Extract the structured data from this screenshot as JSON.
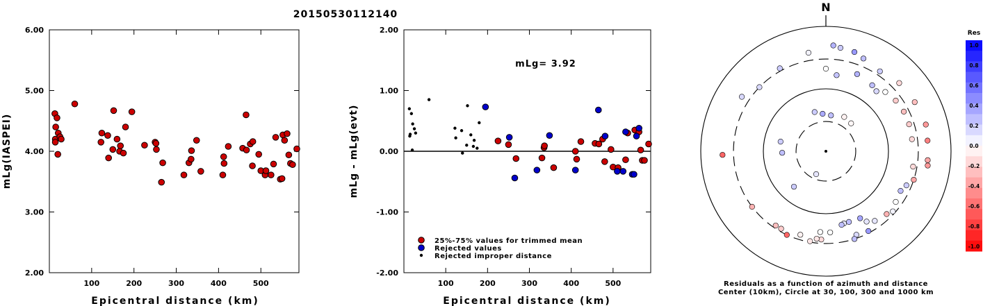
{
  "title": "20150530112140",
  "chart_data": [
    {
      "type": "scatter",
      "xlabel": "Epicentral distance (km)",
      "ylabel": "mLg(IASPEI)",
      "xlim": [
        0,
        590
      ],
      "ylim": [
        2.0,
        6.0
      ],
      "xticks": [
        100,
        200,
        300,
        400,
        500
      ],
      "yticks": [
        2.0,
        3.0,
        4.0,
        5.0,
        6.0
      ],
      "ytick_labels": [
        "2.00",
        "3.00",
        "4.00",
        "5.00",
        "6.00"
      ],
      "series": [
        {
          "color": "#cc0000",
          "points": [
            [
              13,
              4.62
            ],
            [
              14,
              4.2
            ],
            [
              14,
              4.15
            ],
            [
              15,
              4.4
            ],
            [
              18,
              4.55
            ],
            [
              20,
              3.95
            ],
            [
              21,
              4.3
            ],
            [
              25,
              4.24
            ],
            [
              28,
              4.2
            ],
            [
              60,
              4.78
            ],
            [
              122,
              4.15
            ],
            [
              124,
              4.3
            ],
            [
              138,
              4.26
            ],
            [
              140,
              3.89
            ],
            [
              150,
              4.03
            ],
            [
              152,
              4.67
            ],
            [
              160,
              4.2
            ],
            [
              166,
              4.0
            ],
            [
              168,
              4.09
            ],
            [
              175,
              3.97
            ],
            [
              180,
              4.4
            ],
            [
              195,
              4.65
            ],
            [
              225,
              4.1
            ],
            [
              250,
              4.15
            ],
            [
              252,
              4.13
            ],
            [
              253,
              4.03
            ],
            [
              265,
              3.49
            ],
            [
              268,
              3.81
            ],
            [
              318,
              3.61
            ],
            [
              330,
              3.81
            ],
            [
              335,
              3.87
            ],
            [
              336,
              4.01
            ],
            [
              348,
              4.18
            ],
            [
              358,
              3.67
            ],
            [
              410,
              3.61
            ],
            [
              412,
              3.91
            ],
            [
              413,
              3.8
            ],
            [
              423,
              4.08
            ],
            [
              457,
              4.05
            ],
            [
              465,
              4.6
            ],
            [
              466,
              4.02
            ],
            [
              475,
              4.12
            ],
            [
              480,
              3.76
            ],
            [
              481,
              4.16
            ],
            [
              495,
              3.95
            ],
            [
              500,
              3.68
            ],
            [
              510,
              3.61
            ],
            [
              512,
              3.68
            ],
            [
              524,
              3.61
            ],
            [
              530,
              3.79
            ],
            [
              535,
              4.23
            ],
            [
              546,
              3.54
            ],
            [
              550,
              3.55
            ],
            [
              552,
              4.27
            ],
            [
              556,
              4.18
            ],
            [
              562,
              4.29
            ],
            [
              566,
              3.94
            ],
            [
              570,
              3.8
            ],
            [
              575,
              3.78
            ],
            [
              585,
              4.04
            ]
          ]
        }
      ]
    },
    {
      "type": "scatter",
      "xlabel": "Epicentral distance (km)",
      "ylabel": "mLg - mLg(evt)",
      "xlim": [
        0,
        590
      ],
      "ylim": [
        -2.0,
        2.0
      ],
      "xticks": [
        100,
        200,
        300,
        400,
        500
      ],
      "yticks": [
        -2.0,
        -1.0,
        0.0,
        1.0,
        2.0
      ],
      "ytick_labels": [
        "-2.00",
        "-1.00",
        "0.00",
        "1.00",
        "2.00"
      ],
      "annotation": "mLg= 3.92",
      "reference_line": 0.0,
      "series": [
        {
          "name": "25%-75% values for trimmed mean",
          "color": "#cc0000",
          "points": [
            [
              225,
              0.17
            ],
            [
              250,
              0.11
            ],
            [
              268,
              -0.12
            ],
            [
              330,
              -0.11
            ],
            [
              335,
              0.06
            ],
            [
              336,
              0.09
            ],
            [
              358,
              -0.27
            ],
            [
              410,
              0.0
            ],
            [
              413,
              -0.13
            ],
            [
              423,
              0.16
            ],
            [
              457,
              0.13
            ],
            [
              466,
              0.12
            ],
            [
              475,
              0.2
            ],
            [
              480,
              -0.17
            ],
            [
              495,
              0.03
            ],
            [
              500,
              -0.26
            ],
            [
              512,
              -0.27
            ],
            [
              530,
              -0.14
            ],
            [
              535,
              0.3
            ],
            [
              552,
              0.35
            ],
            [
              562,
              0.32
            ],
            [
              566,
              0.02
            ],
            [
              570,
              -0.15
            ],
            [
              575,
              -0.15
            ],
            [
              585,
              0.12
            ]
          ]
        },
        {
          "name": "Rejected values",
          "color": "#0000cc",
          "points": [
            [
              195,
              0.73
            ],
            [
              252,
              0.23
            ],
            [
              265,
              -0.44
            ],
            [
              318,
              -0.31
            ],
            [
              348,
              0.26
            ],
            [
              410,
              -0.31
            ],
            [
              465,
              0.68
            ],
            [
              481,
              0.25
            ],
            [
              510,
              -0.33
            ],
            [
              524,
              -0.33
            ],
            [
              530,
              0.32
            ],
            [
              546,
              -0.38
            ],
            [
              550,
              -0.38
            ],
            [
              556,
              0.25
            ],
            [
              562,
              0.38
            ]
          ]
        },
        {
          "name": "Rejected improper distance",
          "color": "#000000",
          "points": [
            [
              13,
              0.7
            ],
            [
              14,
              0.25
            ],
            [
              15,
              0.28
            ],
            [
              18,
              0.62
            ],
            [
              20,
              0.02
            ],
            [
              21,
              0.45
            ],
            [
              25,
              0.37
            ],
            [
              28,
              0.3
            ],
            [
              60,
              0.85
            ],
            [
              122,
              0.38
            ],
            [
              124,
              0.22
            ],
            [
              138,
              0.34
            ],
            [
              140,
              -0.03
            ],
            [
              150,
              0.1
            ],
            [
              152,
              0.75
            ],
            [
              160,
              0.27
            ],
            [
              166,
              0.08
            ],
            [
              168,
              0.18
            ],
            [
              175,
              0.05
            ],
            [
              180,
              0.47
            ]
          ]
        }
      ]
    },
    {
      "type": "polar",
      "north_label": "N",
      "caption": [
        "Residuals as a function of azimuth and distance",
        "Center (10km), Circle at 30, 100, 300 and 1000 km"
      ],
      "rings_km": [
        30,
        100,
        300,
        1000
      ],
      "ring_styles": [
        "dashed",
        "solid",
        "dashed",
        "solid"
      ],
      "colorbar": {
        "title": "Res",
        "tick_labels": [
          "1.0",
          "0.8",
          "0.6",
          "0.4",
          "0.2",
          "0.0",
          "-0.2",
          "-0.4",
          "-0.6",
          "-0.8",
          "-1.0"
        ],
        "max_color": "#0000ff",
        "min_color": "#ff0000"
      },
      "center_km": 10,
      "points": [
        [
          0,
          10,
          0.0
        ],
        [
          344,
          45,
          0.2
        ],
        [
          355,
          40,
          0.33
        ],
        [
          8,
          38,
          0.25
        ],
        [
          28,
          42,
          -0.05
        ],
        [
          42,
          40,
          -0.03
        ],
        [
          203,
          25,
          0.1
        ],
        [
          222,
          58,
          0.2
        ],
        [
          268,
          50,
          0.25
        ],
        [
          282,
          55,
          0.2
        ],
        [
          8,
          170,
          0.23
        ],
        [
          0,
          210,
          0.0
        ],
        [
          22,
          215,
          0.3
        ],
        [
          35,
          195,
          0.25
        ],
        [
          40,
          180,
          0.15
        ],
        [
          45,
          220,
          0.0
        ],
        [
          54,
          240,
          -0.2
        ],
        [
          63,
          250,
          -0.25
        ],
        [
          72,
          250,
          -0.2
        ],
        [
          82,
          245,
          -0.15
        ],
        [
          100,
          260,
          -0.15
        ],
        [
          108,
          300,
          -0.35
        ],
        [
          113,
          250,
          0.2
        ],
        [
          118,
          225,
          0.25
        ],
        [
          126,
          240,
          0.0
        ],
        [
          132,
          275,
          0.05
        ],
        [
          136,
          250,
          -0.3
        ],
        [
          145,
          230,
          0.1
        ],
        [
          150,
          200,
          0.1
        ],
        [
          153,
          160,
          0.35
        ],
        [
          162,
          155,
          0.25
        ],
        [
          166,
          155,
          0.1
        ],
        [
          168,
          160,
          0.25
        ],
        [
          177,
          200,
          0.0
        ],
        [
          184,
          198,
          0.0
        ],
        [
          183,
          260,
          -0.15
        ],
        [
          186,
          256,
          -0.1
        ],
        [
          190,
          290,
          -0.1
        ],
        [
          197,
          250,
          -0.05
        ],
        [
          160,
          265,
          0.15
        ],
        [
          152,
          280,
          0.4
        ],
        [
          162,
          300,
          0.25
        ],
        [
          205,
          300,
          -0.6
        ],
        [
          210,
          270,
          -0.2
        ],
        [
          214,
          272,
          -0.25
        ],
        [
          233,
          300,
          -0.3
        ],
        [
          268,
          450,
          -0.6
        ],
        [
          303,
          400,
          0.15
        ],
        [
          314,
          300,
          0.15
        ],
        [
          331,
          330,
          0.2
        ],
        [
          350,
          400,
          0.05
        ],
        [
          4,
          500,
          0.3
        ],
        [
          8,
          470,
          0.2
        ],
        [
          16,
          450,
          0.4
        ],
        [
          22,
          400,
          0.25
        ],
        [
          34,
          350,
          0.2
        ],
        [
          47,
          400,
          -0.15
        ],
        [
          61,
          420,
          -0.25
        ],
        [
          75,
          450,
          -0.4
        ],
        [
          84,
          430,
          -0.5
        ],
        [
          95,
          430,
          -0.35
        ],
        [
          98,
          440,
          -0.4
        ]
      ]
    }
  ]
}
